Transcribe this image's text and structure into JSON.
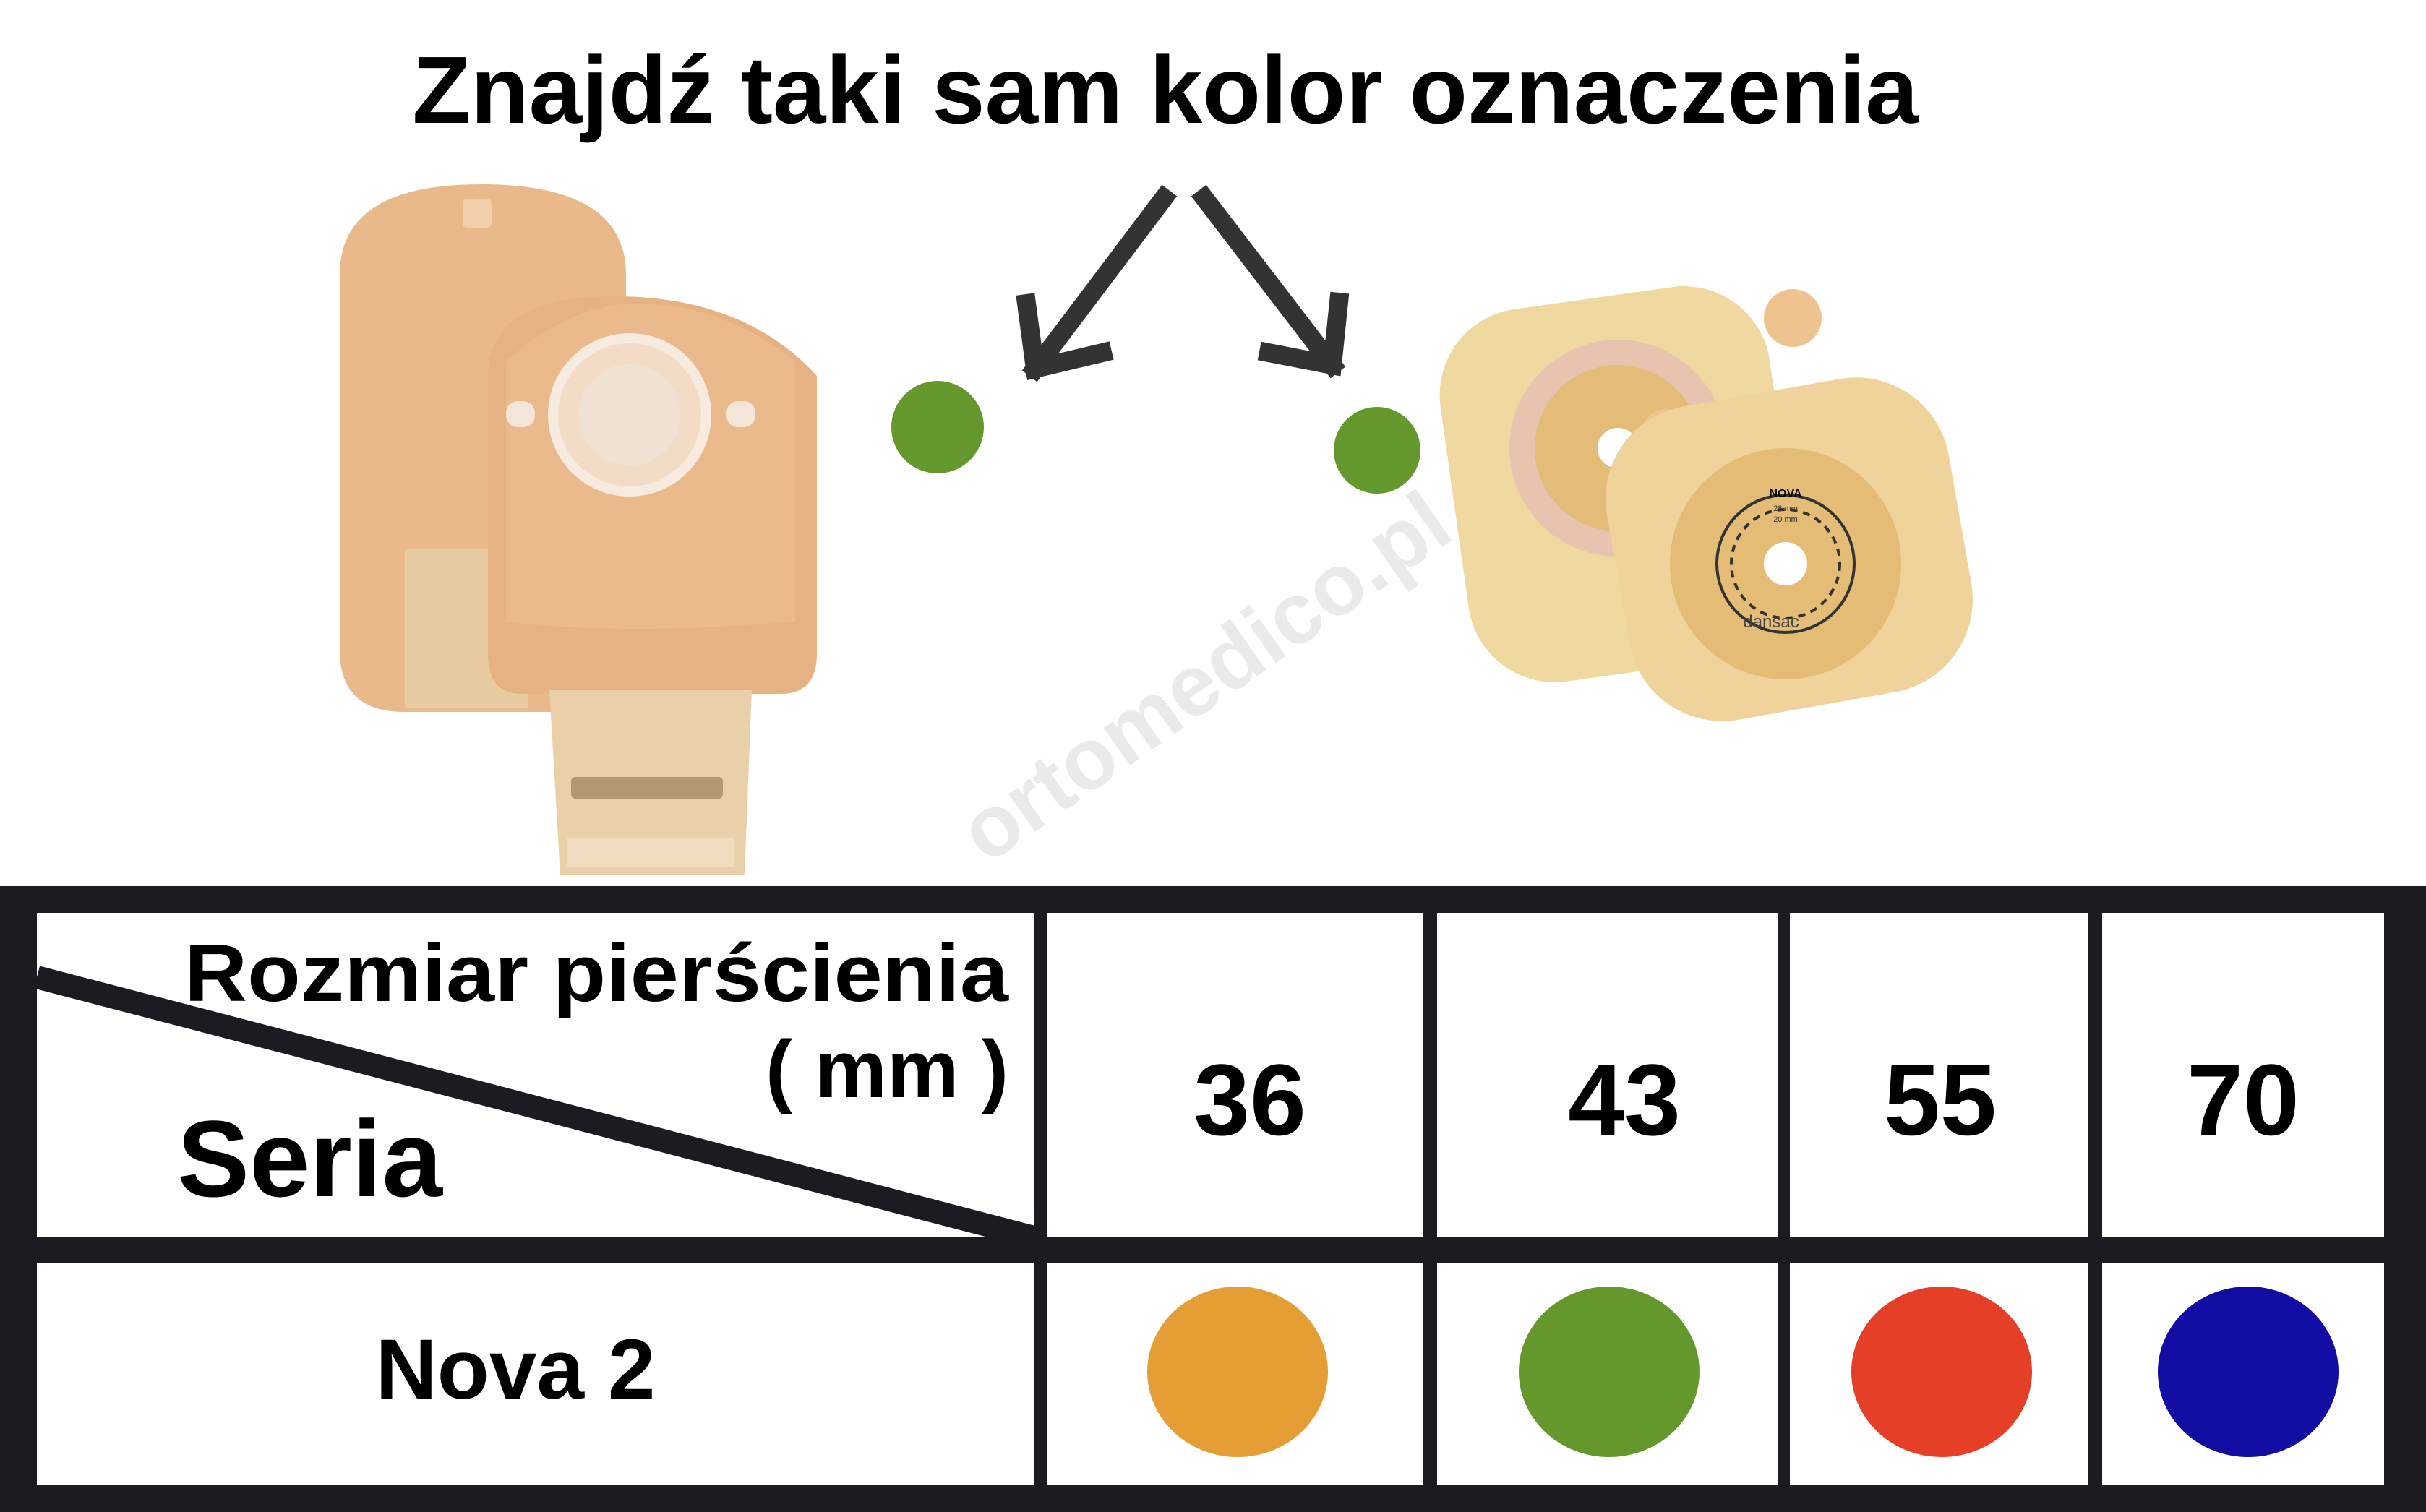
{
  "title": "Znajdź taki sam kolor oznaczenia",
  "watermark": "ortomedico.pl",
  "product_labels": {
    "brand": "dansac",
    "series": "NOVA",
    "size_outer": "28 mm",
    "size_inner": "20 mm"
  },
  "marker_color": "#65982c",
  "table": {
    "header_top": "Rozmiar pierścienia",
    "header_unit": "( mm )",
    "header_left": "Seria",
    "sizes": [
      "36",
      "43",
      "55",
      "70"
    ],
    "rows": [
      {
        "series": "Nova 2",
        "colors": [
          "#e59e36",
          "#65982c",
          "#e54027",
          "#130ca3"
        ]
      }
    ],
    "border_color": "#1b1b22"
  }
}
